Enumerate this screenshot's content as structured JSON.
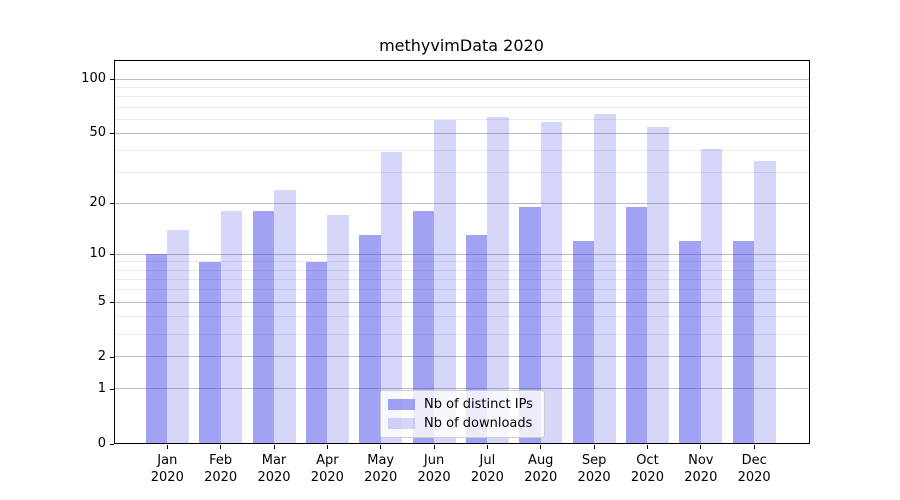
{
  "chart_data": {
    "type": "bar",
    "title": "methyvimData 2020",
    "categories": [
      "Jan",
      "Feb",
      "Mar",
      "Apr",
      "May",
      "Jun",
      "Jul",
      "Aug",
      "Sep",
      "Oct",
      "Nov",
      "Dec"
    ],
    "year": "2020",
    "x_tick_labels": [
      "Jan 2020",
      "Feb 2020",
      "Mar 2020",
      "Apr 2020",
      "May 2020",
      "Jun 2020",
      "Jul 2020",
      "Aug 2020",
      "Sep 2020",
      "Oct 2020",
      "Nov 2020",
      "Dec 2020"
    ],
    "series": [
      {
        "name": "Nb of distinct IPs",
        "color": "rgba(70,70,235,0.5)",
        "values": [
          10,
          9,
          18,
          9,
          13,
          18,
          13,
          19,
          12,
          19,
          12,
          12
        ]
      },
      {
        "name": "Nb of downloads",
        "color": "rgba(70,70,235,0.22)",
        "values": [
          14,
          18,
          24,
          17,
          39,
          59,
          62,
          58,
          64,
          54,
          41,
          35
        ]
      }
    ],
    "xlabel": "",
    "ylabel": "",
    "yscale": "log1p",
    "ylim": [
      0,
      128
    ],
    "y_major_ticks": [
      0,
      1,
      2,
      5,
      10,
      20,
      50,
      100
    ],
    "y_minor_ticks": [
      3,
      4,
      6,
      7,
      8,
      9,
      30,
      40,
      60,
      70,
      80,
      90
    ],
    "grid": true,
    "legend_position": "lower center",
    "colors": {
      "axis": "#000000",
      "major_grid": "#bdbdbd",
      "minor_grid": "#e9e9e9",
      "text": "#000000",
      "legend_border": "#cccccc"
    }
  }
}
